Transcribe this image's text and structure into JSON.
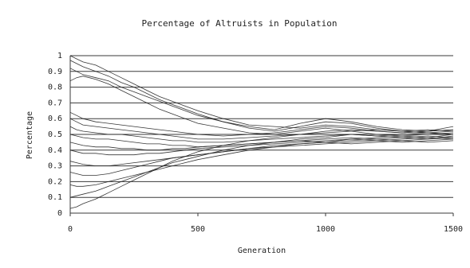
{
  "chart_data": {
    "type": "line",
    "title": "Percentage of Altruists in Population",
    "xlabel": "Generation",
    "ylabel": "Percentage",
    "xlim": [
      0,
      1500
    ],
    "ylim": [
      0,
      1
    ],
    "x_ticks": [
      "0",
      "500",
      "1000",
      "1500"
    ],
    "x_tick_values": [
      0,
      500,
      1000,
      1500
    ],
    "y_ticks": [
      "0",
      "0.1",
      "0.2",
      "0.3",
      "0.4",
      "0.5",
      "0.6",
      "0.7",
      "0.8",
      "0.9",
      "1"
    ],
    "y_tick_values": [
      0,
      0.1,
      0.2,
      0.3,
      0.4,
      0.5,
      0.6,
      0.7,
      0.8,
      0.9,
      1.0
    ],
    "grid": "horizontal",
    "legend": "none",
    "line_color": "#202020",
    "x": [
      0,
      25,
      50,
      100,
      150,
      200,
      250,
      300,
      350,
      400,
      450,
      500,
      600,
      700,
      800,
      900,
      1000,
      1100,
      1200,
      1300,
      1400,
      1500
    ],
    "series": [
      {
        "values": [
          1.0,
          0.98,
          0.96,
          0.94,
          0.9,
          0.86,
          0.82,
          0.78,
          0.74,
          0.71,
          0.68,
          0.65,
          0.6,
          0.56,
          0.55,
          0.54,
          0.56,
          0.55,
          0.53,
          0.52,
          0.51,
          0.5
        ]
      },
      {
        "values": [
          0.97,
          0.95,
          0.93,
          0.9,
          0.87,
          0.83,
          0.8,
          0.76,
          0.72,
          0.69,
          0.66,
          0.63,
          0.58,
          0.55,
          0.53,
          0.57,
          0.6,
          0.58,
          0.55,
          0.53,
          0.52,
          0.55
        ]
      },
      {
        "values": [
          0.92,
          0.9,
          0.88,
          0.86,
          0.84,
          0.8,
          0.77,
          0.74,
          0.71,
          0.68,
          0.65,
          0.62,
          0.58,
          0.54,
          0.52,
          0.55,
          0.58,
          0.57,
          0.54,
          0.52,
          0.53,
          0.52
        ]
      },
      {
        "values": [
          0.84,
          0.86,
          0.87,
          0.85,
          0.82,
          0.78,
          0.74,
          0.7,
          0.66,
          0.63,
          0.6,
          0.57,
          0.54,
          0.51,
          0.5,
          0.52,
          0.54,
          0.52,
          0.5,
          0.49,
          0.5,
          0.51
        ]
      },
      {
        "values": [
          0.64,
          0.62,
          0.6,
          0.58,
          0.57,
          0.56,
          0.55,
          0.54,
          0.53,
          0.52,
          0.51,
          0.5,
          0.49,
          0.5,
          0.51,
          0.53,
          0.55,
          0.54,
          0.52,
          0.51,
          0.52,
          0.53
        ]
      },
      {
        "values": [
          0.6,
          0.58,
          0.56,
          0.55,
          0.54,
          0.53,
          0.52,
          0.51,
          0.5,
          0.49,
          0.48,
          0.47,
          0.47,
          0.48,
          0.49,
          0.5,
          0.51,
          0.52,
          0.53,
          0.52,
          0.51,
          0.5
        ]
      },
      {
        "values": [
          0.55,
          0.53,
          0.52,
          0.51,
          0.5,
          0.5,
          0.49,
          0.48,
          0.47,
          0.46,
          0.46,
          0.45,
          0.45,
          0.46,
          0.47,
          0.48,
          0.49,
          0.5,
          0.49,
          0.48,
          0.49,
          0.48
        ]
      },
      {
        "values": [
          0.5,
          0.49,
          0.48,
          0.47,
          0.47,
          0.46,
          0.45,
          0.44,
          0.44,
          0.43,
          0.43,
          0.42,
          0.43,
          0.44,
          0.45,
          0.46,
          0.47,
          0.48,
          0.47,
          0.46,
          0.47,
          0.48
        ]
      },
      {
        "values": [
          0.45,
          0.44,
          0.43,
          0.42,
          0.42,
          0.41,
          0.41,
          0.4,
          0.4,
          0.41,
          0.41,
          0.42,
          0.43,
          0.44,
          0.45,
          0.46,
          0.45,
          0.44,
          0.45,
          0.46,
          0.45,
          0.46
        ]
      },
      {
        "values": [
          0.4,
          0.39,
          0.38,
          0.38,
          0.37,
          0.37,
          0.37,
          0.38,
          0.38,
          0.39,
          0.4,
          0.41,
          0.42,
          0.43,
          0.44,
          0.45,
          0.46,
          0.47,
          0.46,
          0.45,
          0.46,
          0.47
        ]
      },
      {
        "values": [
          0.33,
          0.32,
          0.31,
          0.3,
          0.3,
          0.31,
          0.32,
          0.33,
          0.34,
          0.35,
          0.36,
          0.37,
          0.39,
          0.41,
          0.42,
          0.43,
          0.44,
          0.45,
          0.46,
          0.47,
          0.48,
          0.47
        ]
      },
      {
        "values": [
          0.26,
          0.25,
          0.24,
          0.24,
          0.25,
          0.27,
          0.29,
          0.31,
          0.33,
          0.35,
          0.36,
          0.37,
          0.39,
          0.41,
          0.43,
          0.44,
          0.45,
          0.46,
          0.47,
          0.48,
          0.47,
          0.49
        ]
      },
      {
        "values": [
          0.18,
          0.17,
          0.17,
          0.18,
          0.2,
          0.22,
          0.24,
          0.26,
          0.28,
          0.3,
          0.32,
          0.34,
          0.37,
          0.4,
          0.42,
          0.44,
          0.45,
          0.47,
          0.48,
          0.49,
          0.48,
          0.5
        ]
      },
      {
        "values": [
          0.1,
          0.11,
          0.12,
          0.14,
          0.17,
          0.2,
          0.23,
          0.26,
          0.29,
          0.32,
          0.34,
          0.36,
          0.4,
          0.43,
          0.45,
          0.47,
          0.48,
          0.5,
          0.49,
          0.5,
          0.51,
          0.52
        ]
      },
      {
        "values": [
          0.03,
          0.04,
          0.06,
          0.09,
          0.13,
          0.17,
          0.21,
          0.25,
          0.29,
          0.33,
          0.36,
          0.39,
          0.43,
          0.46,
          0.48,
          0.5,
          0.52,
          0.53,
          0.52,
          0.51,
          0.52,
          0.53
        ]
      }
    ]
  }
}
